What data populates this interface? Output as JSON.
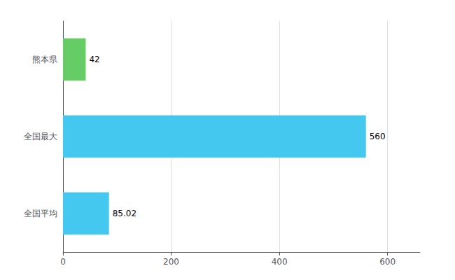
{
  "chart_data": {
    "type": "bar",
    "orientation": "horizontal",
    "categories": [
      "全国平均",
      "全国最大",
      "熊本県"
    ],
    "values": [
      85.02,
      560,
      42
    ],
    "colors": [
      "#44c8f0",
      "#44c8f0",
      "#66cc66"
    ],
    "xlim": [
      0,
      660
    ],
    "xticks": [
      0,
      200,
      400,
      600
    ],
    "grid": true,
    "data_labels": true
  }
}
